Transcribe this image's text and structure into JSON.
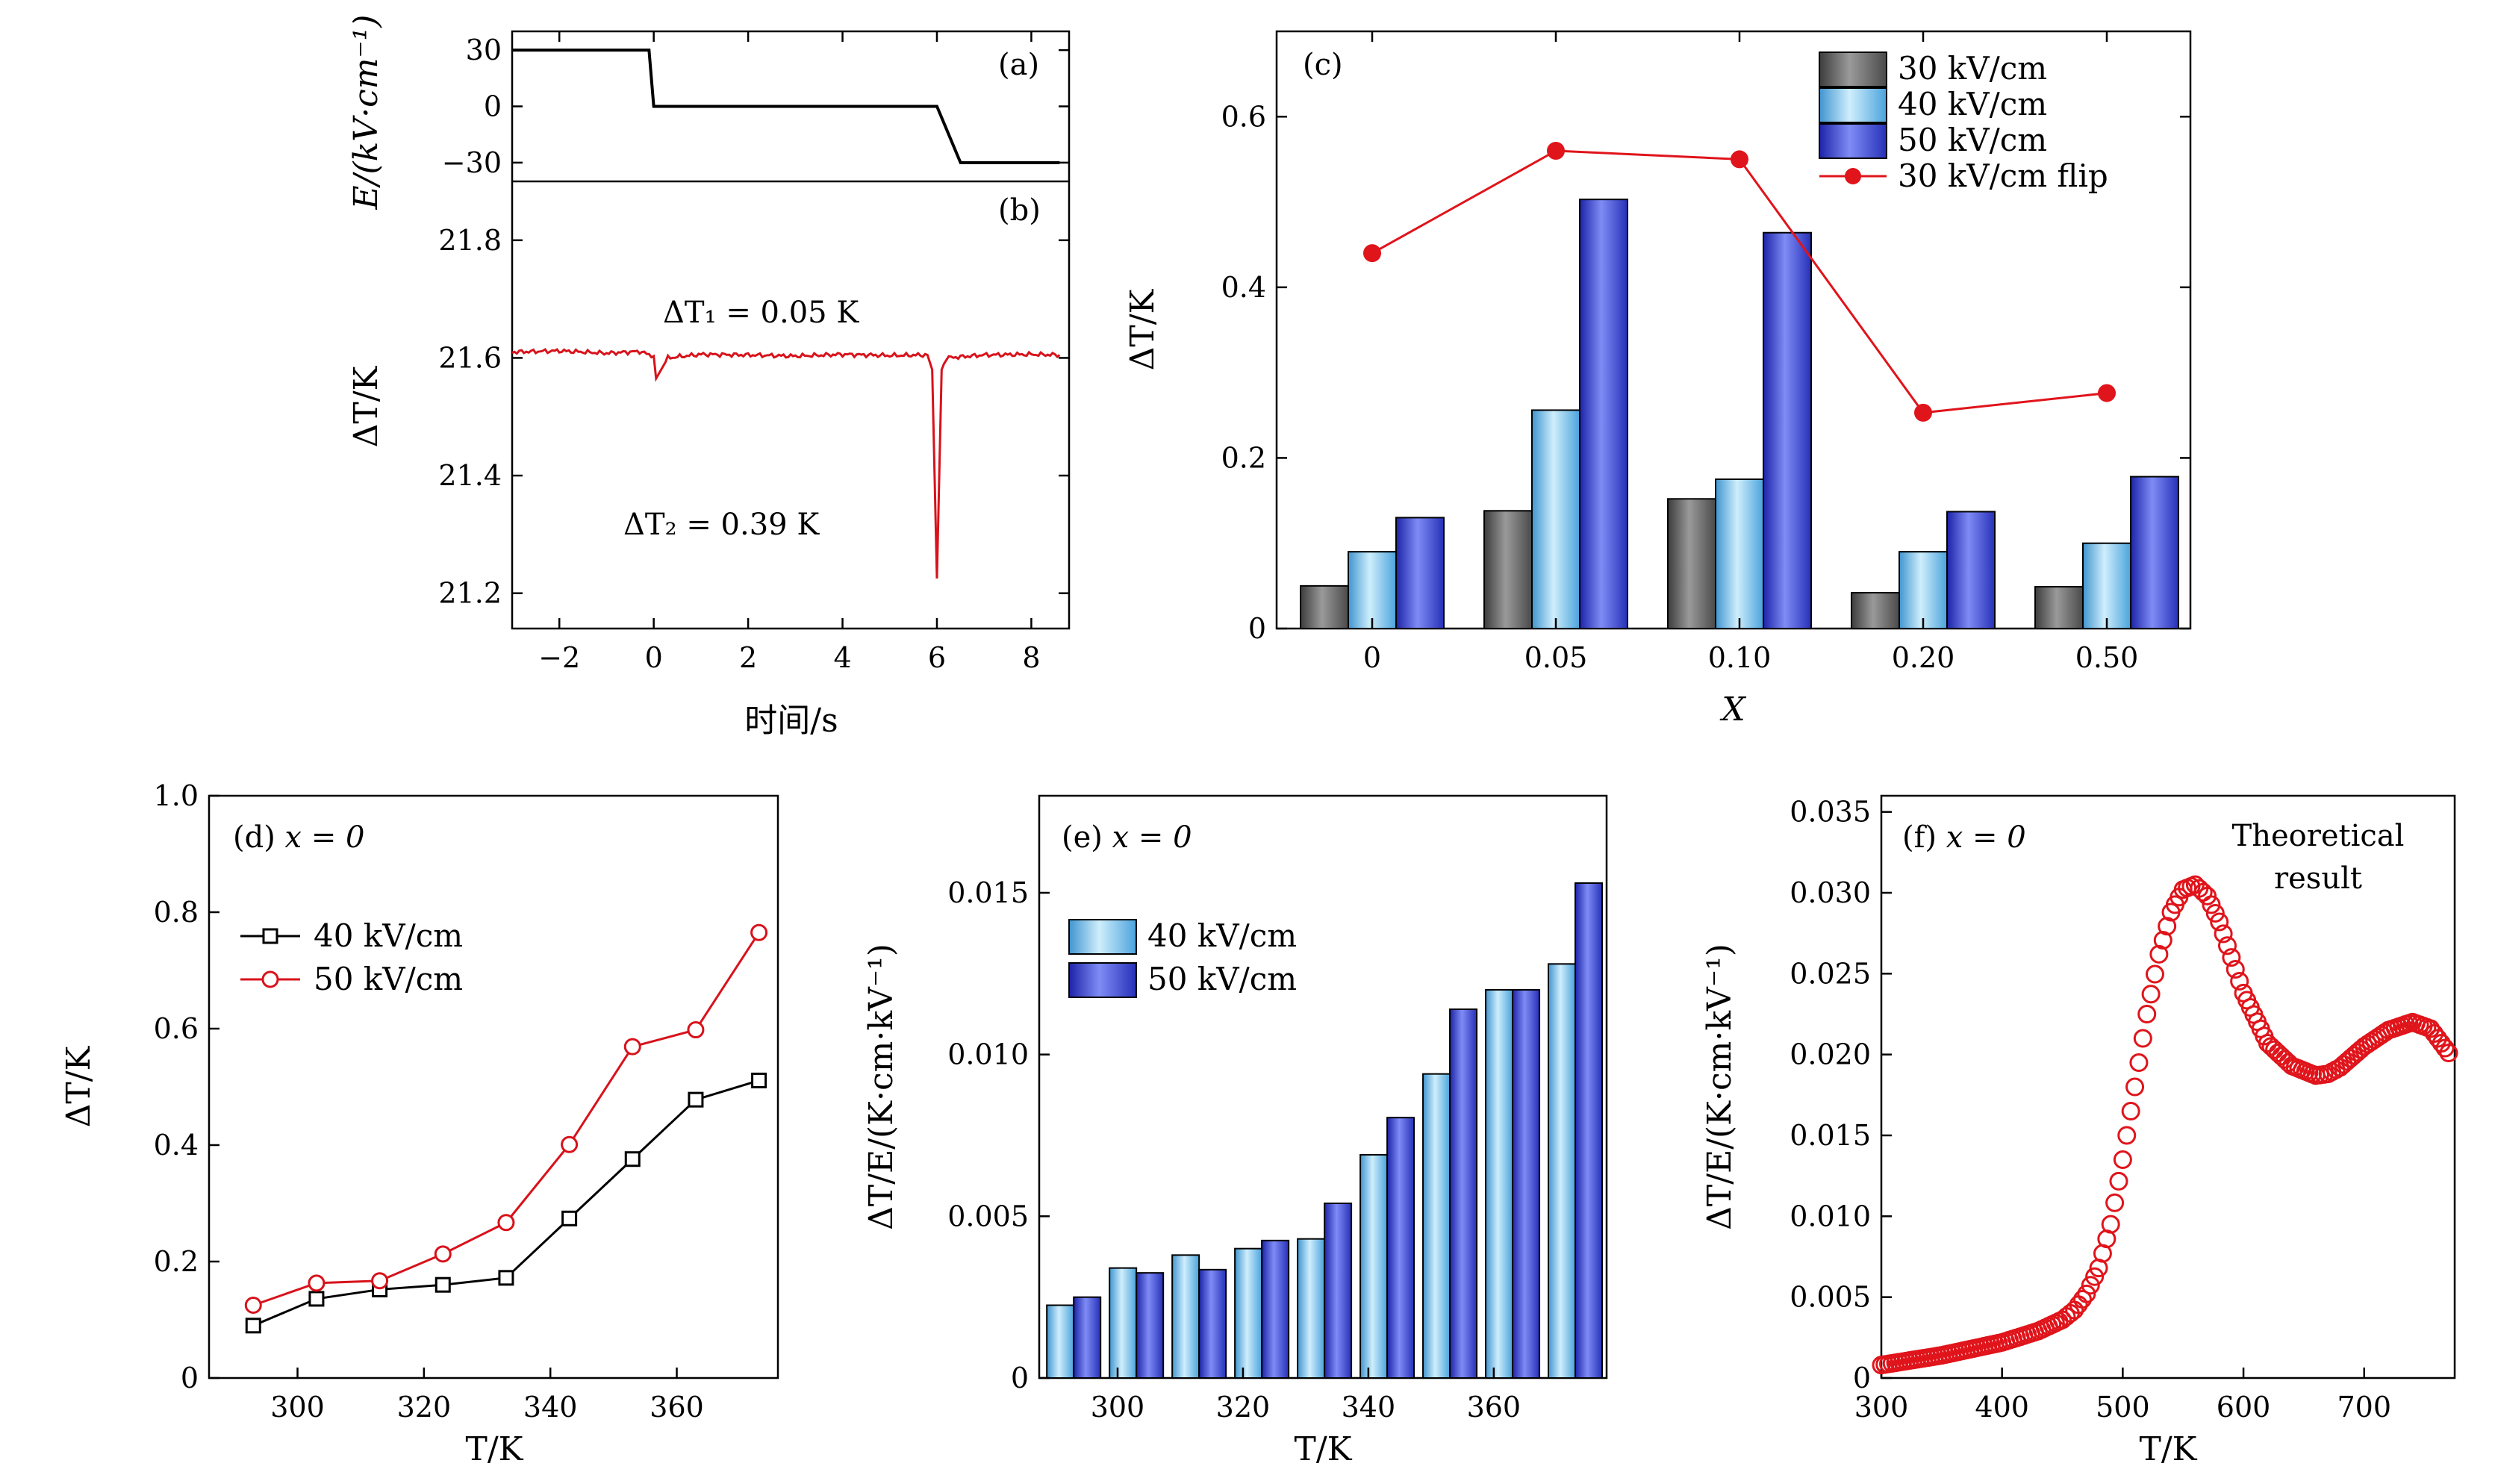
{
  "chart_data": [
    {
      "panel": "(a)",
      "type": "line",
      "ylabel": "E/(kV·cm⁻¹)",
      "ylim": [
        -40,
        40
      ],
      "yticks": [
        30,
        0,
        -30
      ],
      "ytick_labels": [
        "30",
        "0",
        "−30"
      ],
      "xlim": [
        -3.0,
        8.8
      ],
      "series": [
        {
          "x": [
            -3.0,
            -0.1,
            0.0,
            6.0,
            6.5,
            8.6
          ],
          "y": [
            30,
            30,
            0,
            0,
            -30,
            -30
          ]
        }
      ],
      "colors": {
        "line": "#000000"
      }
    },
    {
      "panel": "(b)",
      "type": "line",
      "xlabel": "时间/s",
      "ylabel": "ΔT/K",
      "ylim": [
        21.14,
        21.9
      ],
      "yticks": [
        21.2,
        21.4,
        21.6,
        21.8
      ],
      "xlim": [
        -3.0,
        8.8
      ],
      "xticks": [
        -2,
        0,
        2,
        4,
        6,
        8
      ],
      "xtick_labels": [
        "−2",
        "0",
        "2",
        "4",
        "6",
        "8"
      ],
      "annotations": [
        {
          "text": "ΔT₁ = 0.05 K"
        },
        {
          "text": "ΔT₂ = 0.39 K"
        }
      ],
      "series": [
        {
          "x": [
            -3.0,
            -2.0,
            -1.0,
            -0.3,
            0.0,
            0.05,
            0.3,
            1.0,
            2.0,
            3.0,
            4.0,
            5.0,
            5.8,
            5.9,
            6.0,
            6.1,
            6.2,
            7.0,
            8.0,
            8.6
          ],
          "y": [
            21.61,
            21.612,
            21.608,
            21.611,
            21.603,
            21.565,
            21.6,
            21.606,
            21.605,
            21.603,
            21.606,
            21.604,
            21.605,
            21.58,
            21.225,
            21.58,
            21.6,
            21.605,
            21.606,
            21.605
          ]
        }
      ],
      "colors": {
        "line": "#d8121b"
      }
    },
    {
      "panel": "(c)",
      "type": "bar",
      "xlabel": "X",
      "ylabel": "ΔT/K",
      "ylim": [
        0,
        0.7
      ],
      "yticks": [
        0,
        0.2,
        0.4,
        0.6
      ],
      "ytick_labels": [
        "0",
        "0.2",
        "0.4",
        "0.6"
      ],
      "categories": [
        "0",
        "0.05",
        "0.10",
        "0.20",
        "0.50"
      ],
      "series": [
        {
          "name": "30 kV/cm",
          "values": [
            0.05,
            0.138,
            0.152,
            0.042,
            0.049
          ],
          "color": "#6e6e6e"
        },
        {
          "name": "40 kV/cm",
          "values": [
            0.09,
            0.256,
            0.175,
            0.09,
            0.1
          ],
          "color": "#5fb3e6"
        },
        {
          "name": "50 kV/cm",
          "values": [
            0.13,
            0.503,
            0.464,
            0.137,
            0.178
          ],
          "color": "#2b35c9"
        },
        {
          "name": "30 kV/cm flip",
          "type": "line",
          "values": [
            0.44,
            0.56,
            0.55,
            0.253,
            0.276
          ],
          "color": "#e0141b"
        }
      ],
      "legend": "top-right"
    },
    {
      "panel": "(d)",
      "type": "line",
      "tag": "(d)",
      "tag_eq": "x = 0",
      "xlabel": "T/K",
      "ylabel": "ΔT/K",
      "xlim": [
        286,
        376
      ],
      "ylim": [
        0,
        1.0
      ],
      "xticks": [
        300,
        320,
        340,
        360
      ],
      "yticks": [
        0,
        0.2,
        0.4,
        0.6,
        0.8,
        1.0
      ],
      "ytick_labels": [
        "0",
        "0.2",
        "0.4",
        "0.6",
        "0.8",
        "1.0"
      ],
      "series": [
        {
          "name": "40 kV/cm",
          "x": [
            293,
            303,
            313,
            323,
            333,
            343,
            353,
            363,
            373
          ],
          "values": [
            0.09,
            0.136,
            0.152,
            0.16,
            0.172,
            0.274,
            0.376,
            0.478,
            0.511
          ],
          "color": "#000000",
          "marker": "square"
        },
        {
          "name": "50 kV/cm",
          "x": [
            293,
            303,
            313,
            323,
            333,
            343,
            353,
            363,
            373
          ],
          "values": [
            0.125,
            0.163,
            0.167,
            0.213,
            0.267,
            0.401,
            0.569,
            0.598,
            0.765
          ],
          "color": "#d8121b",
          "marker": "circle"
        }
      ],
      "legend": "top-left"
    },
    {
      "panel": "(e)",
      "type": "bar",
      "tag": "(e)",
      "tag_eq": "x = 0",
      "xlabel": "T/K",
      "ylabel": "ΔT/E/(K·cm·kV⁻¹)",
      "xlim": [
        287.5,
        378
      ],
      "ylim": [
        0,
        0.018
      ],
      "xticks": [
        300,
        320,
        340,
        360
      ],
      "yticks": [
        0,
        0.005,
        0.01,
        0.015
      ],
      "ytick_labels": [
        "0",
        "0.005",
        "0.010",
        "0.015"
      ],
      "categories": [
        293,
        303,
        313,
        323,
        333,
        343,
        353,
        363,
        373
      ],
      "series": [
        {
          "name": "40 kV/cm",
          "values": [
            0.00225,
            0.0034,
            0.0038,
            0.004,
            0.0043,
            0.0069,
            0.0094,
            0.012,
            0.0128
          ],
          "color": "#5fb3e6"
        },
        {
          "name": "50 kV/cm",
          "values": [
            0.0025,
            0.00325,
            0.00335,
            0.00425,
            0.0054,
            0.00805,
            0.0114,
            0.012,
            0.0153
          ],
          "color": "#2b35c9"
        }
      ],
      "legend": "top-left"
    },
    {
      "panel": "(f)",
      "type": "scatter",
      "tag": "(f)",
      "tag_eq": "x = 0",
      "annotation": [
        "Theoretical",
        "result"
      ],
      "xlabel": "T/K",
      "ylabel": "ΔT/E/(K·cm·kV⁻¹)",
      "xlim": [
        300,
        775
      ],
      "ylim": [
        0,
        0.036
      ],
      "xticks": [
        300,
        400,
        500,
        600,
        700
      ],
      "yticks": [
        0,
        0.005,
        0.01,
        0.015,
        0.02,
        0.025,
        0.03,
        0.035
      ],
      "ytick_labels": [
        "0",
        "0.005",
        "0.010",
        "0.015",
        "0.020",
        "0.025",
        "0.030",
        "0.035"
      ],
      "series": [
        {
          "x": [
            300,
            350,
            400,
            430,
            450,
            460,
            470,
            480,
            490,
            500,
            510,
            520,
            530,
            540,
            550,
            560,
            570,
            580,
            590,
            600,
            620,
            640,
            660,
            670,
            680,
            700,
            720,
            740,
            755,
            770
          ],
          "values": [
            0.0008,
            0.0014,
            0.0022,
            0.0029,
            0.0036,
            0.0042,
            0.0052,
            0.0068,
            0.0095,
            0.0135,
            0.018,
            0.0225,
            0.0262,
            0.0288,
            0.0302,
            0.0305,
            0.0298,
            0.0282,
            0.026,
            0.0238,
            0.0207,
            0.0193,
            0.0187,
            0.0188,
            0.0192,
            0.0205,
            0.0215,
            0.022,
            0.0216,
            0.0201
          ],
          "color": "#e0141b"
        }
      ]
    }
  ]
}
